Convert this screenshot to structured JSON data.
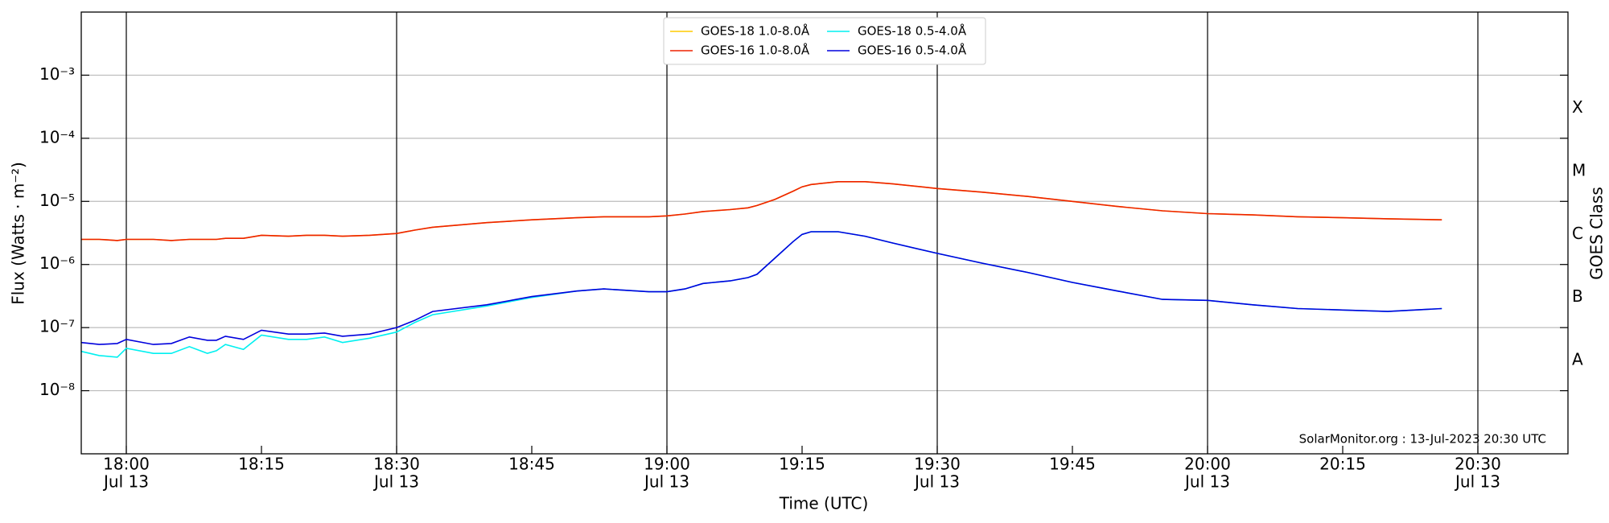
{
  "chart_data": {
    "type": "line",
    "xlabel": "Time (UTC)",
    "ylabel": "Flux (Watts · m⁻²)",
    "y2label": "GOES Class",
    "annotation": "SolarMonitor.org : 13-Jul-2023 20:30 UTC",
    "date_label": "Jul 13",
    "log_y": true,
    "grid": true,
    "legend": "upper center",
    "x": [
      "17:55",
      "17:57",
      "17:59",
      "18:00",
      "18:03",
      "18:05",
      "18:07",
      "18:09",
      "18:10",
      "18:11",
      "18:13",
      "18:15",
      "18:18",
      "18:20",
      "18:22",
      "18:24",
      "18:27",
      "18:30",
      "18:32",
      "18:34",
      "18:40",
      "18:45",
      "18:50",
      "18:53",
      "18:58",
      "19:00",
      "19:02",
      "19:04",
      "19:07",
      "19:09",
      "19:10",
      "19:12",
      "19:14",
      "19:15",
      "19:16",
      "19:19",
      "19:22",
      "19:25",
      "19:30",
      "19:35",
      "19:40",
      "19:45",
      "19:50",
      "19:55",
      "20:00",
      "20:05",
      "20:10",
      "20:15",
      "20:20",
      "20:26"
    ],
    "xlim": [
      "17:55",
      "20:40"
    ],
    "xticks": [
      "18:00",
      "18:15",
      "18:30",
      "18:45",
      "19:00",
      "19:15",
      "19:30",
      "19:45",
      "20:00",
      "20:15",
      "20:30"
    ],
    "ylim": [
      1e-09,
      0.01
    ],
    "yticks": [
      {
        "value": 1e-08,
        "label": "10⁻⁸"
      },
      {
        "value": 1e-07,
        "label": "10⁻⁷"
      },
      {
        "value": 1e-06,
        "label": "10⁻⁶"
      },
      {
        "value": 1e-05,
        "label": "10⁻⁵"
      },
      {
        "value": 0.0001,
        "label": "10⁻⁴"
      },
      {
        "value": 0.001,
        "label": "10⁻³"
      }
    ],
    "y2lim": [
      1e-09,
      0.01
    ],
    "y2ticks": [
      {
        "value": 3e-08,
        "label": "A"
      },
      {
        "value": 3e-07,
        "label": "B"
      },
      {
        "value": 3e-06,
        "label": "C"
      },
      {
        "value": 3e-05,
        "label": "M"
      },
      {
        "value": 0.0003,
        "label": "X"
      }
    ],
    "series": [
      {
        "name": "GOES-18 1.0-8.0Å",
        "color": "#ffcc00",
        "values": [
          2.5e-06,
          2.5e-06,
          2.4e-06,
          2.5e-06,
          2.5e-06,
          2.4e-06,
          2.5e-06,
          2.5e-06,
          2.5e-06,
          2.6e-06,
          2.6e-06,
          2.9e-06,
          2.8e-06,
          2.9e-06,
          2.9e-06,
          2.8e-06,
          2.9e-06,
          3.1e-06,
          3.5e-06,
          3.9e-06,
          4.6e-06,
          5.1e-06,
          5.5e-06,
          5.7e-06,
          5.7e-06,
          5.9e-06,
          6.3e-06,
          6.9e-06,
          7.4e-06,
          7.9e-06,
          8.6e-06,
          1.08e-05,
          1.45e-05,
          1.7e-05,
          1.85e-05,
          2.05e-05,
          2.05e-05,
          1.9e-05,
          1.6e-05,
          1.4e-05,
          1.2e-05,
          1e-05,
          8.3e-06,
          7.1e-06,
          6.4e-06,
          6.1e-06,
          5.7e-06,
          5.5e-06,
          5.3e-06,
          5.1e-06
        ]
      },
      {
        "name": "GOES-16 1.0-8.0Å",
        "color": "#ee2200",
        "values": [
          2.5e-06,
          2.5e-06,
          2.4e-06,
          2.5e-06,
          2.5e-06,
          2.4e-06,
          2.5e-06,
          2.5e-06,
          2.5e-06,
          2.6e-06,
          2.6e-06,
          2.9e-06,
          2.8e-06,
          2.9e-06,
          2.9e-06,
          2.8e-06,
          2.9e-06,
          3.1e-06,
          3.5e-06,
          3.9e-06,
          4.6e-06,
          5.1e-06,
          5.5e-06,
          5.7e-06,
          5.7e-06,
          5.9e-06,
          6.3e-06,
          6.9e-06,
          7.4e-06,
          7.9e-06,
          8.6e-06,
          1.08e-05,
          1.45e-05,
          1.7e-05,
          1.85e-05,
          2.05e-05,
          2.05e-05,
          1.9e-05,
          1.6e-05,
          1.4e-05,
          1.2e-05,
          1e-05,
          8.3e-06,
          7.1e-06,
          6.4e-06,
          6.1e-06,
          5.7e-06,
          5.5e-06,
          5.3e-06,
          5.1e-06
        ]
      },
      {
        "name": "GOES-18 0.5-4.0Å",
        "color": "#00f0f0",
        "values": [
          4.2e-08,
          3.6e-08,
          3.4e-08,
          4.7e-08,
          3.9e-08,
          3.9e-08,
          5e-08,
          3.9e-08,
          4.3e-08,
          5.4e-08,
          4.5e-08,
          7.6e-08,
          6.5e-08,
          6.5e-08,
          7.1e-08,
          5.8e-08,
          6.8e-08,
          8.5e-08,
          1.2e-07,
          1.6e-07,
          2.2e-07,
          3e-07,
          3.8e-07,
          4.1e-07,
          3.7e-07,
          3.7e-07,
          4.1e-07,
          5e-07,
          5.5e-07,
          6.2e-07,
          7e-07,
          1.27e-06,
          2.3e-06,
          3e-06,
          3.3e-06,
          3.3e-06,
          2.8e-06,
          2.2e-06,
          1.5e-06,
          1.05e-06,
          7.5e-07,
          5.2e-07,
          3.8e-07,
          2.8e-07,
          2.7e-07,
          2.3e-07,
          2e-07,
          1.9e-07,
          1.8e-07,
          2e-07
        ]
      },
      {
        "name": "GOES-16 0.5-4.0Å",
        "color": "#0000dd",
        "values": [
          5.8e-08,
          5.4e-08,
          5.6e-08,
          6.5e-08,
          5.4e-08,
          5.6e-08,
          7.1e-08,
          6.3e-08,
          6.3e-08,
          7.3e-08,
          6.5e-08,
          9.1e-08,
          7.9e-08,
          7.9e-08,
          8.2e-08,
          7.3e-08,
          7.9e-08,
          1e-07,
          1.3e-07,
          1.8e-07,
          2.3e-07,
          3.1e-07,
          3.8e-07,
          4.1e-07,
          3.7e-07,
          3.7e-07,
          4.1e-07,
          5e-07,
          5.5e-07,
          6.2e-07,
          7e-07,
          1.27e-06,
          2.3e-06,
          3e-06,
          3.3e-06,
          3.3e-06,
          2.8e-06,
          2.2e-06,
          1.5e-06,
          1.05e-06,
          7.5e-07,
          5.2e-07,
          3.8e-07,
          2.8e-07,
          2.7e-07,
          2.3e-07,
          2e-07,
          1.9e-07,
          1.8e-07,
          2e-07
        ]
      }
    ]
  }
}
